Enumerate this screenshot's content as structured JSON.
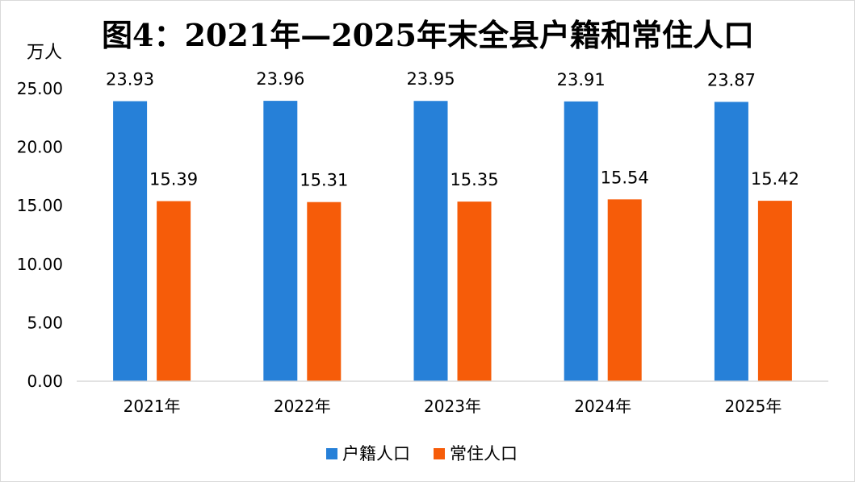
{
  "chart_data": {
    "type": "bar",
    "title": "图4：2021年—2025年末全县户籍和常住人口",
    "ylabel": "万人",
    "xlabel": "",
    "ylim": [
      0,
      25
    ],
    "yticks": [
      "0.00",
      "5.00",
      "10.00",
      "15.00",
      "20.00",
      "25.00"
    ],
    "categories": [
      "2021年",
      "2022年",
      "2023年",
      "2024年",
      "2025年"
    ],
    "series": [
      {
        "name": "户籍人口",
        "color": "#2680d8",
        "values": [
          23.93,
          23.96,
          23.95,
          23.91,
          23.87
        ],
        "labels": [
          "23.93",
          "23.96",
          "23.95",
          "23.91",
          "23.87"
        ]
      },
      {
        "name": "常住人口",
        "color": "#f65c09",
        "values": [
          15.39,
          15.31,
          15.35,
          15.54,
          15.42
        ],
        "labels": [
          "15.39",
          "15.31",
          "15.35",
          "15.54",
          "15.42"
        ]
      }
    ],
    "grid": false,
    "legend": "bottom"
  }
}
